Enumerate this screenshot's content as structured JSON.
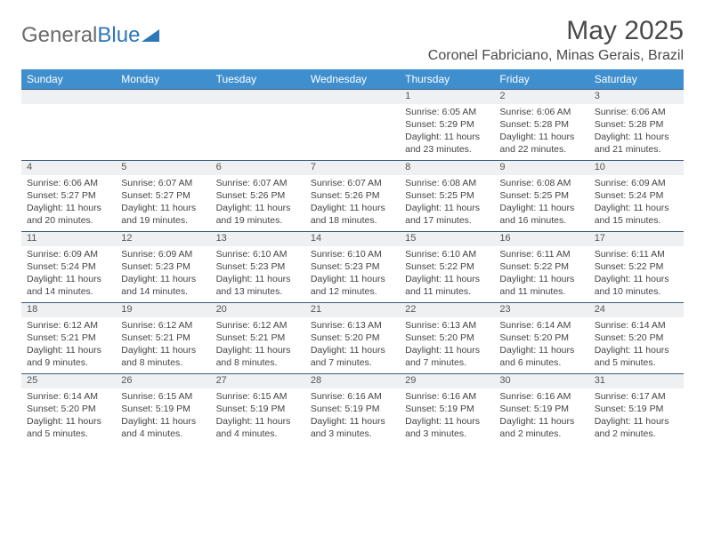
{
  "brand": {
    "part1": "General",
    "part2": "Blue"
  },
  "title": "May 2025",
  "location": "Coronel Fabriciano, Minas Gerais, Brazil",
  "colors": {
    "header_bg": "#3f8fcf",
    "header_text": "#ffffff",
    "daynum_bg": "#eef0f2",
    "row_divider": "#3a5a7a",
    "body_text": "#444444",
    "brand_gray": "#6b6b6b",
    "brand_blue": "#2e77b8"
  },
  "day_headers": [
    "Sunday",
    "Monday",
    "Tuesday",
    "Wednesday",
    "Thursday",
    "Friday",
    "Saturday"
  ],
  "weeks": [
    [
      null,
      null,
      null,
      null,
      {
        "n": "1",
        "sr": "Sunrise: 6:05 AM",
        "ss": "Sunset: 5:29 PM",
        "dl": "Daylight: 11 hours and 23 minutes."
      },
      {
        "n": "2",
        "sr": "Sunrise: 6:06 AM",
        "ss": "Sunset: 5:28 PM",
        "dl": "Daylight: 11 hours and 22 minutes."
      },
      {
        "n": "3",
        "sr": "Sunrise: 6:06 AM",
        "ss": "Sunset: 5:28 PM",
        "dl": "Daylight: 11 hours and 21 minutes."
      }
    ],
    [
      {
        "n": "4",
        "sr": "Sunrise: 6:06 AM",
        "ss": "Sunset: 5:27 PM",
        "dl": "Daylight: 11 hours and 20 minutes."
      },
      {
        "n": "5",
        "sr": "Sunrise: 6:07 AM",
        "ss": "Sunset: 5:27 PM",
        "dl": "Daylight: 11 hours and 19 minutes."
      },
      {
        "n": "6",
        "sr": "Sunrise: 6:07 AM",
        "ss": "Sunset: 5:26 PM",
        "dl": "Daylight: 11 hours and 19 minutes."
      },
      {
        "n": "7",
        "sr": "Sunrise: 6:07 AM",
        "ss": "Sunset: 5:26 PM",
        "dl": "Daylight: 11 hours and 18 minutes."
      },
      {
        "n": "8",
        "sr": "Sunrise: 6:08 AM",
        "ss": "Sunset: 5:25 PM",
        "dl": "Daylight: 11 hours and 17 minutes."
      },
      {
        "n": "9",
        "sr": "Sunrise: 6:08 AM",
        "ss": "Sunset: 5:25 PM",
        "dl": "Daylight: 11 hours and 16 minutes."
      },
      {
        "n": "10",
        "sr": "Sunrise: 6:09 AM",
        "ss": "Sunset: 5:24 PM",
        "dl": "Daylight: 11 hours and 15 minutes."
      }
    ],
    [
      {
        "n": "11",
        "sr": "Sunrise: 6:09 AM",
        "ss": "Sunset: 5:24 PM",
        "dl": "Daylight: 11 hours and 14 minutes."
      },
      {
        "n": "12",
        "sr": "Sunrise: 6:09 AM",
        "ss": "Sunset: 5:23 PM",
        "dl": "Daylight: 11 hours and 14 minutes."
      },
      {
        "n": "13",
        "sr": "Sunrise: 6:10 AM",
        "ss": "Sunset: 5:23 PM",
        "dl": "Daylight: 11 hours and 13 minutes."
      },
      {
        "n": "14",
        "sr": "Sunrise: 6:10 AM",
        "ss": "Sunset: 5:23 PM",
        "dl": "Daylight: 11 hours and 12 minutes."
      },
      {
        "n": "15",
        "sr": "Sunrise: 6:10 AM",
        "ss": "Sunset: 5:22 PM",
        "dl": "Daylight: 11 hours and 11 minutes."
      },
      {
        "n": "16",
        "sr": "Sunrise: 6:11 AM",
        "ss": "Sunset: 5:22 PM",
        "dl": "Daylight: 11 hours and 11 minutes."
      },
      {
        "n": "17",
        "sr": "Sunrise: 6:11 AM",
        "ss": "Sunset: 5:22 PM",
        "dl": "Daylight: 11 hours and 10 minutes."
      }
    ],
    [
      {
        "n": "18",
        "sr": "Sunrise: 6:12 AM",
        "ss": "Sunset: 5:21 PM",
        "dl": "Daylight: 11 hours and 9 minutes."
      },
      {
        "n": "19",
        "sr": "Sunrise: 6:12 AM",
        "ss": "Sunset: 5:21 PM",
        "dl": "Daylight: 11 hours and 8 minutes."
      },
      {
        "n": "20",
        "sr": "Sunrise: 6:12 AM",
        "ss": "Sunset: 5:21 PM",
        "dl": "Daylight: 11 hours and 8 minutes."
      },
      {
        "n": "21",
        "sr": "Sunrise: 6:13 AM",
        "ss": "Sunset: 5:20 PM",
        "dl": "Daylight: 11 hours and 7 minutes."
      },
      {
        "n": "22",
        "sr": "Sunrise: 6:13 AM",
        "ss": "Sunset: 5:20 PM",
        "dl": "Daylight: 11 hours and 7 minutes."
      },
      {
        "n": "23",
        "sr": "Sunrise: 6:14 AM",
        "ss": "Sunset: 5:20 PM",
        "dl": "Daylight: 11 hours and 6 minutes."
      },
      {
        "n": "24",
        "sr": "Sunrise: 6:14 AM",
        "ss": "Sunset: 5:20 PM",
        "dl": "Daylight: 11 hours and 5 minutes."
      }
    ],
    [
      {
        "n": "25",
        "sr": "Sunrise: 6:14 AM",
        "ss": "Sunset: 5:20 PM",
        "dl": "Daylight: 11 hours and 5 minutes."
      },
      {
        "n": "26",
        "sr": "Sunrise: 6:15 AM",
        "ss": "Sunset: 5:19 PM",
        "dl": "Daylight: 11 hours and 4 minutes."
      },
      {
        "n": "27",
        "sr": "Sunrise: 6:15 AM",
        "ss": "Sunset: 5:19 PM",
        "dl": "Daylight: 11 hours and 4 minutes."
      },
      {
        "n": "28",
        "sr": "Sunrise: 6:16 AM",
        "ss": "Sunset: 5:19 PM",
        "dl": "Daylight: 11 hours and 3 minutes."
      },
      {
        "n": "29",
        "sr": "Sunrise: 6:16 AM",
        "ss": "Sunset: 5:19 PM",
        "dl": "Daylight: 11 hours and 3 minutes."
      },
      {
        "n": "30",
        "sr": "Sunrise: 6:16 AM",
        "ss": "Sunset: 5:19 PM",
        "dl": "Daylight: 11 hours and 2 minutes."
      },
      {
        "n": "31",
        "sr": "Sunrise: 6:17 AM",
        "ss": "Sunset: 5:19 PM",
        "dl": "Daylight: 11 hours and 2 minutes."
      }
    ]
  ]
}
